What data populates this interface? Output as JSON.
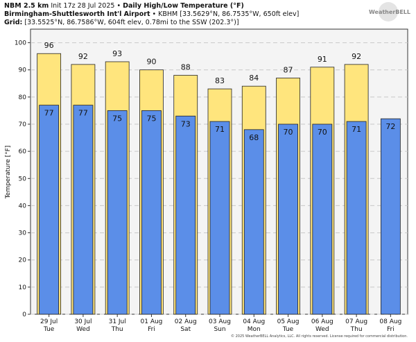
{
  "header": {
    "model": "NBM 2.5 km",
    "init": "Init 17z 28 Jul 2025",
    "product": "Daily High/Low Temperature (°F)",
    "station": "Birmingham-Shuttlesworth Int'l Airport",
    "station_info": "• KBHM [33.5629°N, 86.7535°W, 650ft elev]",
    "grid_label": "Grid:",
    "grid_info": "[33.5525°N, 86.7586°W, 604ft elev, 0.78mi to the SSW (202.3°)]",
    "logo": "WeatherBELL"
  },
  "footer": "© 2025 WeatherBELL Analytics, LLC. All rights reserved. License required for commercial distribution.",
  "chart_data": {
    "type": "bar",
    "ylabel": "Temperature [°F]",
    "categories": [
      [
        "29 Jul",
        "Tue"
      ],
      [
        "30 Jul",
        "Wed"
      ],
      [
        "31 Jul",
        "Thu"
      ],
      [
        "01 Aug",
        "Fri"
      ],
      [
        "02 Aug",
        "Sat"
      ],
      [
        "03 Aug",
        "Sun"
      ],
      [
        "04 Aug",
        "Mon"
      ],
      [
        "05 Aug",
        "Tue"
      ],
      [
        "06 Aug",
        "Wed"
      ],
      [
        "07 Aug",
        "Thu"
      ],
      [
        "08 Aug",
        "Fri"
      ]
    ],
    "series": [
      {
        "color": "#ffe57d",
        "values": [
          96,
          92,
          93,
          90,
          88,
          83,
          84,
          87,
          91,
          92,
          null
        ]
      },
      {
        "color": "#5b8ee8",
        "values": [
          77,
          77,
          75,
          75,
          73,
          71,
          68,
          70,
          70,
          71,
          72
        ]
      }
    ],
    "ylim": [
      0,
      105
    ],
    "yticks": [
      0,
      10,
      20,
      30,
      40,
      50,
      60,
      70,
      80,
      90,
      100
    ],
    "grid": true
  }
}
